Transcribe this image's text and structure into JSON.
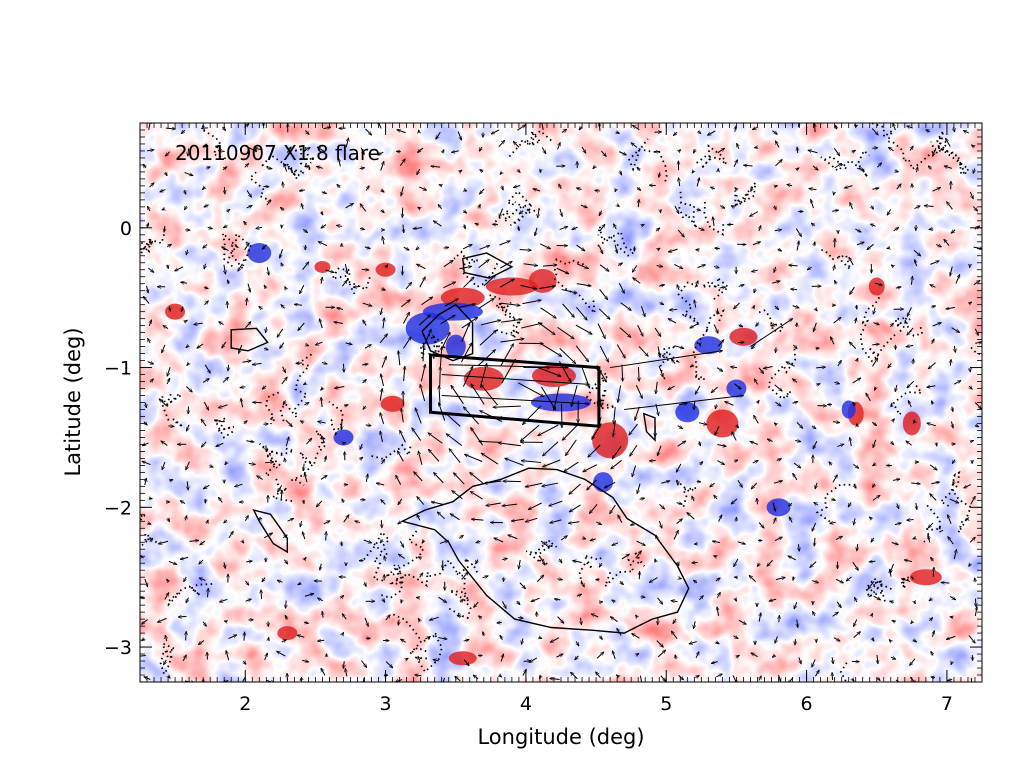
{
  "chart_data": {
    "type": "heatmap",
    "title": "20110907 X1.8 flare",
    "xlabel": "Longitude (deg)",
    "ylabel": "Latitude (deg)",
    "xlim": [
      1.25,
      7.25
    ],
    "ylim": [
      -3.25,
      0.75
    ],
    "xticks": [
      {
        "value": 2,
        "label": "2"
      },
      {
        "value": 3,
        "label": "3"
      },
      {
        "value": 4,
        "label": "4"
      },
      {
        "value": 5,
        "label": "5"
      },
      {
        "value": 6,
        "label": "6"
      },
      {
        "value": 7,
        "label": "7"
      }
    ],
    "yticks": [
      {
        "value": 0,
        "label": "0"
      },
      {
        "value": -1,
        "label": "−1"
      },
      {
        "value": -2,
        "label": "−2"
      },
      {
        "value": -3,
        "label": "−3"
      }
    ],
    "colormap": {
      "positive": "#e03030",
      "negative": "#3040e0",
      "zero": "#ffffff"
    },
    "overlays": {
      "flare_box": [
        [
          3.32,
          -0.91
        ],
        [
          4.52,
          -1.0
        ],
        [
          4.52,
          -1.42
        ],
        [
          3.32,
          -1.32
        ]
      ],
      "solid_contours": [
        [
          [
            3.82,
            -1.8
          ],
          [
            4.02,
            -1.72
          ],
          [
            4.22,
            -1.73
          ],
          [
            4.42,
            -1.8
          ],
          [
            4.62,
            -1.93
          ],
          [
            4.72,
            -2.08
          ],
          [
            4.92,
            -2.2
          ],
          [
            5.08,
            -2.42
          ],
          [
            5.16,
            -2.58
          ],
          [
            5.08,
            -2.75
          ],
          [
            4.9,
            -2.8
          ],
          [
            4.7,
            -2.9
          ],
          [
            4.48,
            -2.88
          ],
          [
            4.18,
            -2.86
          ],
          [
            3.92,
            -2.8
          ],
          [
            3.72,
            -2.63
          ],
          [
            3.6,
            -2.48
          ],
          [
            3.52,
            -2.38
          ],
          [
            3.45,
            -2.25
          ],
          [
            3.35,
            -2.16
          ],
          [
            3.12,
            -2.1
          ],
          [
            3.28,
            -2.02
          ],
          [
            3.48,
            -1.96
          ],
          [
            3.62,
            -1.85
          ]
        ],
        [
          [
            3.38,
            -0.62
          ],
          [
            3.5,
            -0.55
          ],
          [
            3.62,
            -0.68
          ],
          [
            3.62,
            -0.9
          ],
          [
            3.48,
            -0.95
          ],
          [
            3.32,
            -0.88
          ],
          [
            3.26,
            -0.74
          ]
        ],
        [
          [
            3.55,
            -0.22
          ],
          [
            3.72,
            -0.18
          ],
          [
            3.9,
            -0.28
          ],
          [
            3.74,
            -0.36
          ],
          [
            3.56,
            -0.32
          ]
        ],
        [
          [
            1.9,
            -0.73
          ],
          [
            2.08,
            -0.72
          ],
          [
            2.16,
            -0.82
          ],
          [
            2.02,
            -0.88
          ],
          [
            1.9,
            -0.86
          ]
        ],
        [
          [
            2.06,
            -2.02
          ],
          [
            2.18,
            -2.05
          ],
          [
            2.3,
            -2.22
          ],
          [
            2.3,
            -2.32
          ],
          [
            2.2,
            -2.26
          ],
          [
            2.1,
            -2.1
          ]
        ],
        [
          [
            4.84,
            -1.33
          ],
          [
            4.92,
            -1.36
          ],
          [
            4.92,
            -1.52
          ],
          [
            4.86,
            -1.46
          ]
        ]
      ]
    },
    "grid": false
  }
}
